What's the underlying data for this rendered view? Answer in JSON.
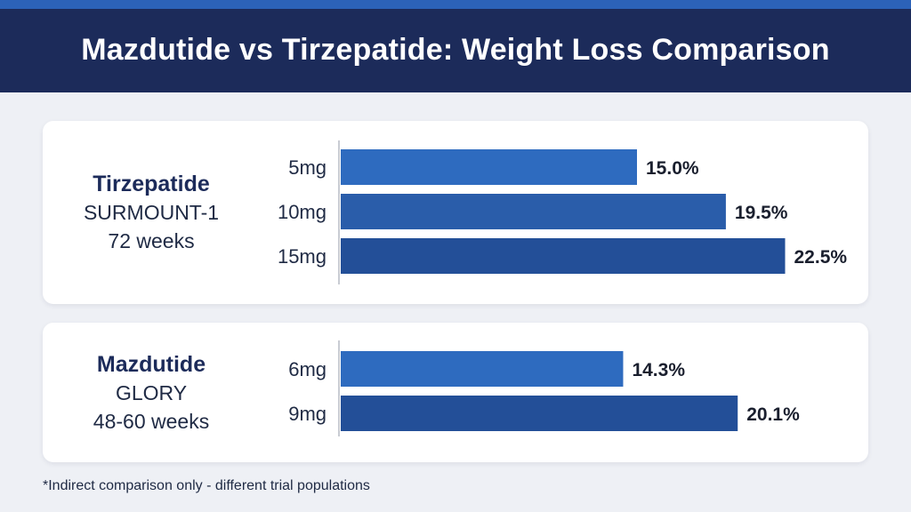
{
  "title": "Mazdutide vs Tirzepatide: Weight Loss Comparison",
  "colors": {
    "header_bg": "#1c2b5a",
    "header_stripe": "#2c62b8",
    "bar_light": "#2e6bbf",
    "bar_mid": "#2a5daa",
    "bar_dark": "#234f98"
  },
  "panels": [
    {
      "drug": "Tirzepatide",
      "trial": "SURMOUNT-1",
      "duration": "72 weeks"
    },
    {
      "drug": "Mazdutide",
      "trial": "GLORY",
      "duration": "48-60 weeks"
    }
  ],
  "chart_data": [
    {
      "type": "bar",
      "orientation": "horizontal",
      "categories": [
        "5mg",
        "10mg",
        "15mg"
      ],
      "values": [
        15.0,
        19.5,
        22.5
      ],
      "data_labels": [
        "15.0%",
        "19.5%",
        "22.5%"
      ],
      "unit": "%"
    },
    {
      "type": "bar",
      "orientation": "horizontal",
      "categories": [
        "6mg",
        "9mg"
      ],
      "values": [
        14.3,
        20.1
      ],
      "data_labels": [
        "14.3%",
        "20.1%"
      ],
      "unit": "%"
    }
  ],
  "footnote": "*Indirect comparison only - different trial populations"
}
